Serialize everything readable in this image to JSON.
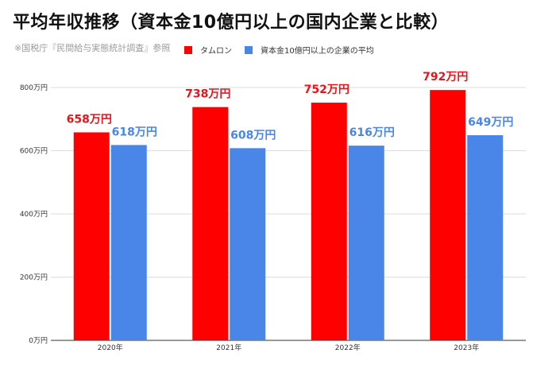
{
  "title": "平均年収推移（資本金10億円以上の国内企業と比較）",
  "source_note": "※国税庁『民間給与実態統計調査』参照",
  "chart_data": {
    "type": "bar",
    "categories": [
      "2020年",
      "2021年",
      "2022年",
      "2023年"
    ],
    "series": [
      {
        "name": "タムロン",
        "values": [
          658,
          738,
          752,
          792
        ],
        "color": "#ff0000",
        "labels": [
          "658万円",
          "738万円",
          "752万円",
          "792万円"
        ],
        "label_color": "#e8141c"
      },
      {
        "name": "資本金10億円以上の企業の平均",
        "values": [
          618,
          608,
          616,
          649
        ],
        "color": "#4a86e8",
        "labels": [
          "618万円",
          "608万円",
          "616万円",
          "649万円"
        ],
        "label_color": "#4a86e8"
      }
    ],
    "ylim": [
      0,
      800
    ],
    "yticks": [
      0,
      200,
      400,
      600,
      800
    ],
    "ytick_labels": [
      "0万円",
      "200万円",
      "400万円",
      "600万円",
      "800万円"
    ],
    "grid": true,
    "legend_position": "top"
  }
}
